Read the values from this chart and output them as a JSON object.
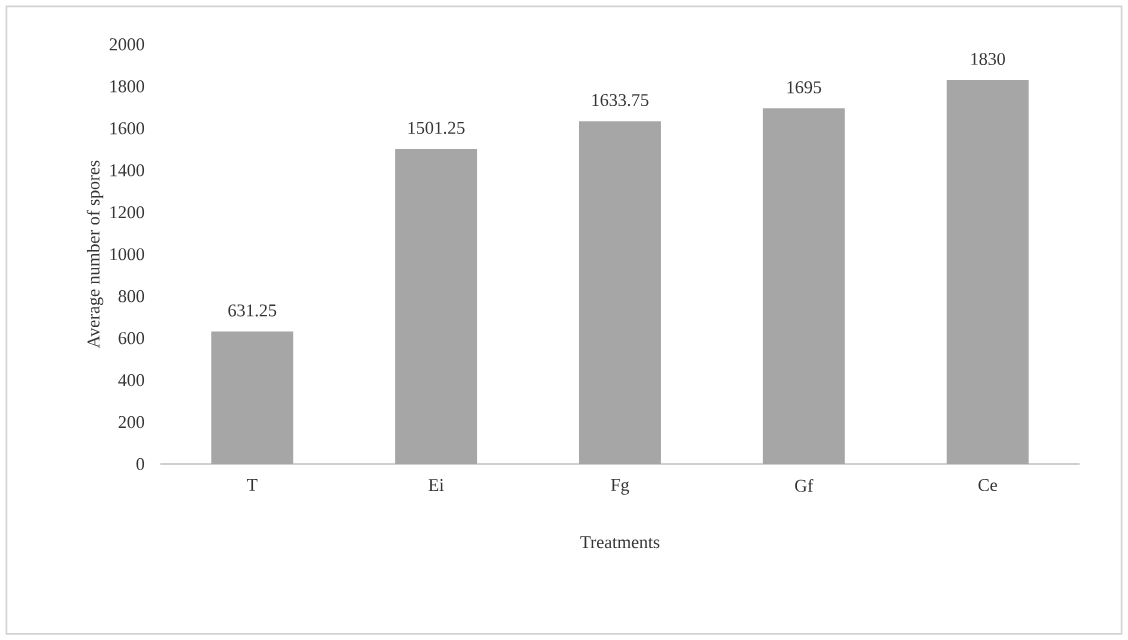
{
  "chart_data": {
    "type": "bar",
    "xlabel": "Treatments",
    "ylabel": "Average number of spores",
    "categories": [
      "T",
      "Ei",
      "Fg",
      "Gf",
      "Ce"
    ],
    "values": [
      631.25,
      1501.25,
      1633.75,
      1695,
      1830
    ],
    "color": "#a6a6a6",
    "ylim": [
      0,
      2000
    ],
    "yticks": [
      0,
      200,
      400,
      600,
      800,
      1000,
      1200,
      1400,
      1600,
      1800,
      2000
    ],
    "data_labels": true
  }
}
